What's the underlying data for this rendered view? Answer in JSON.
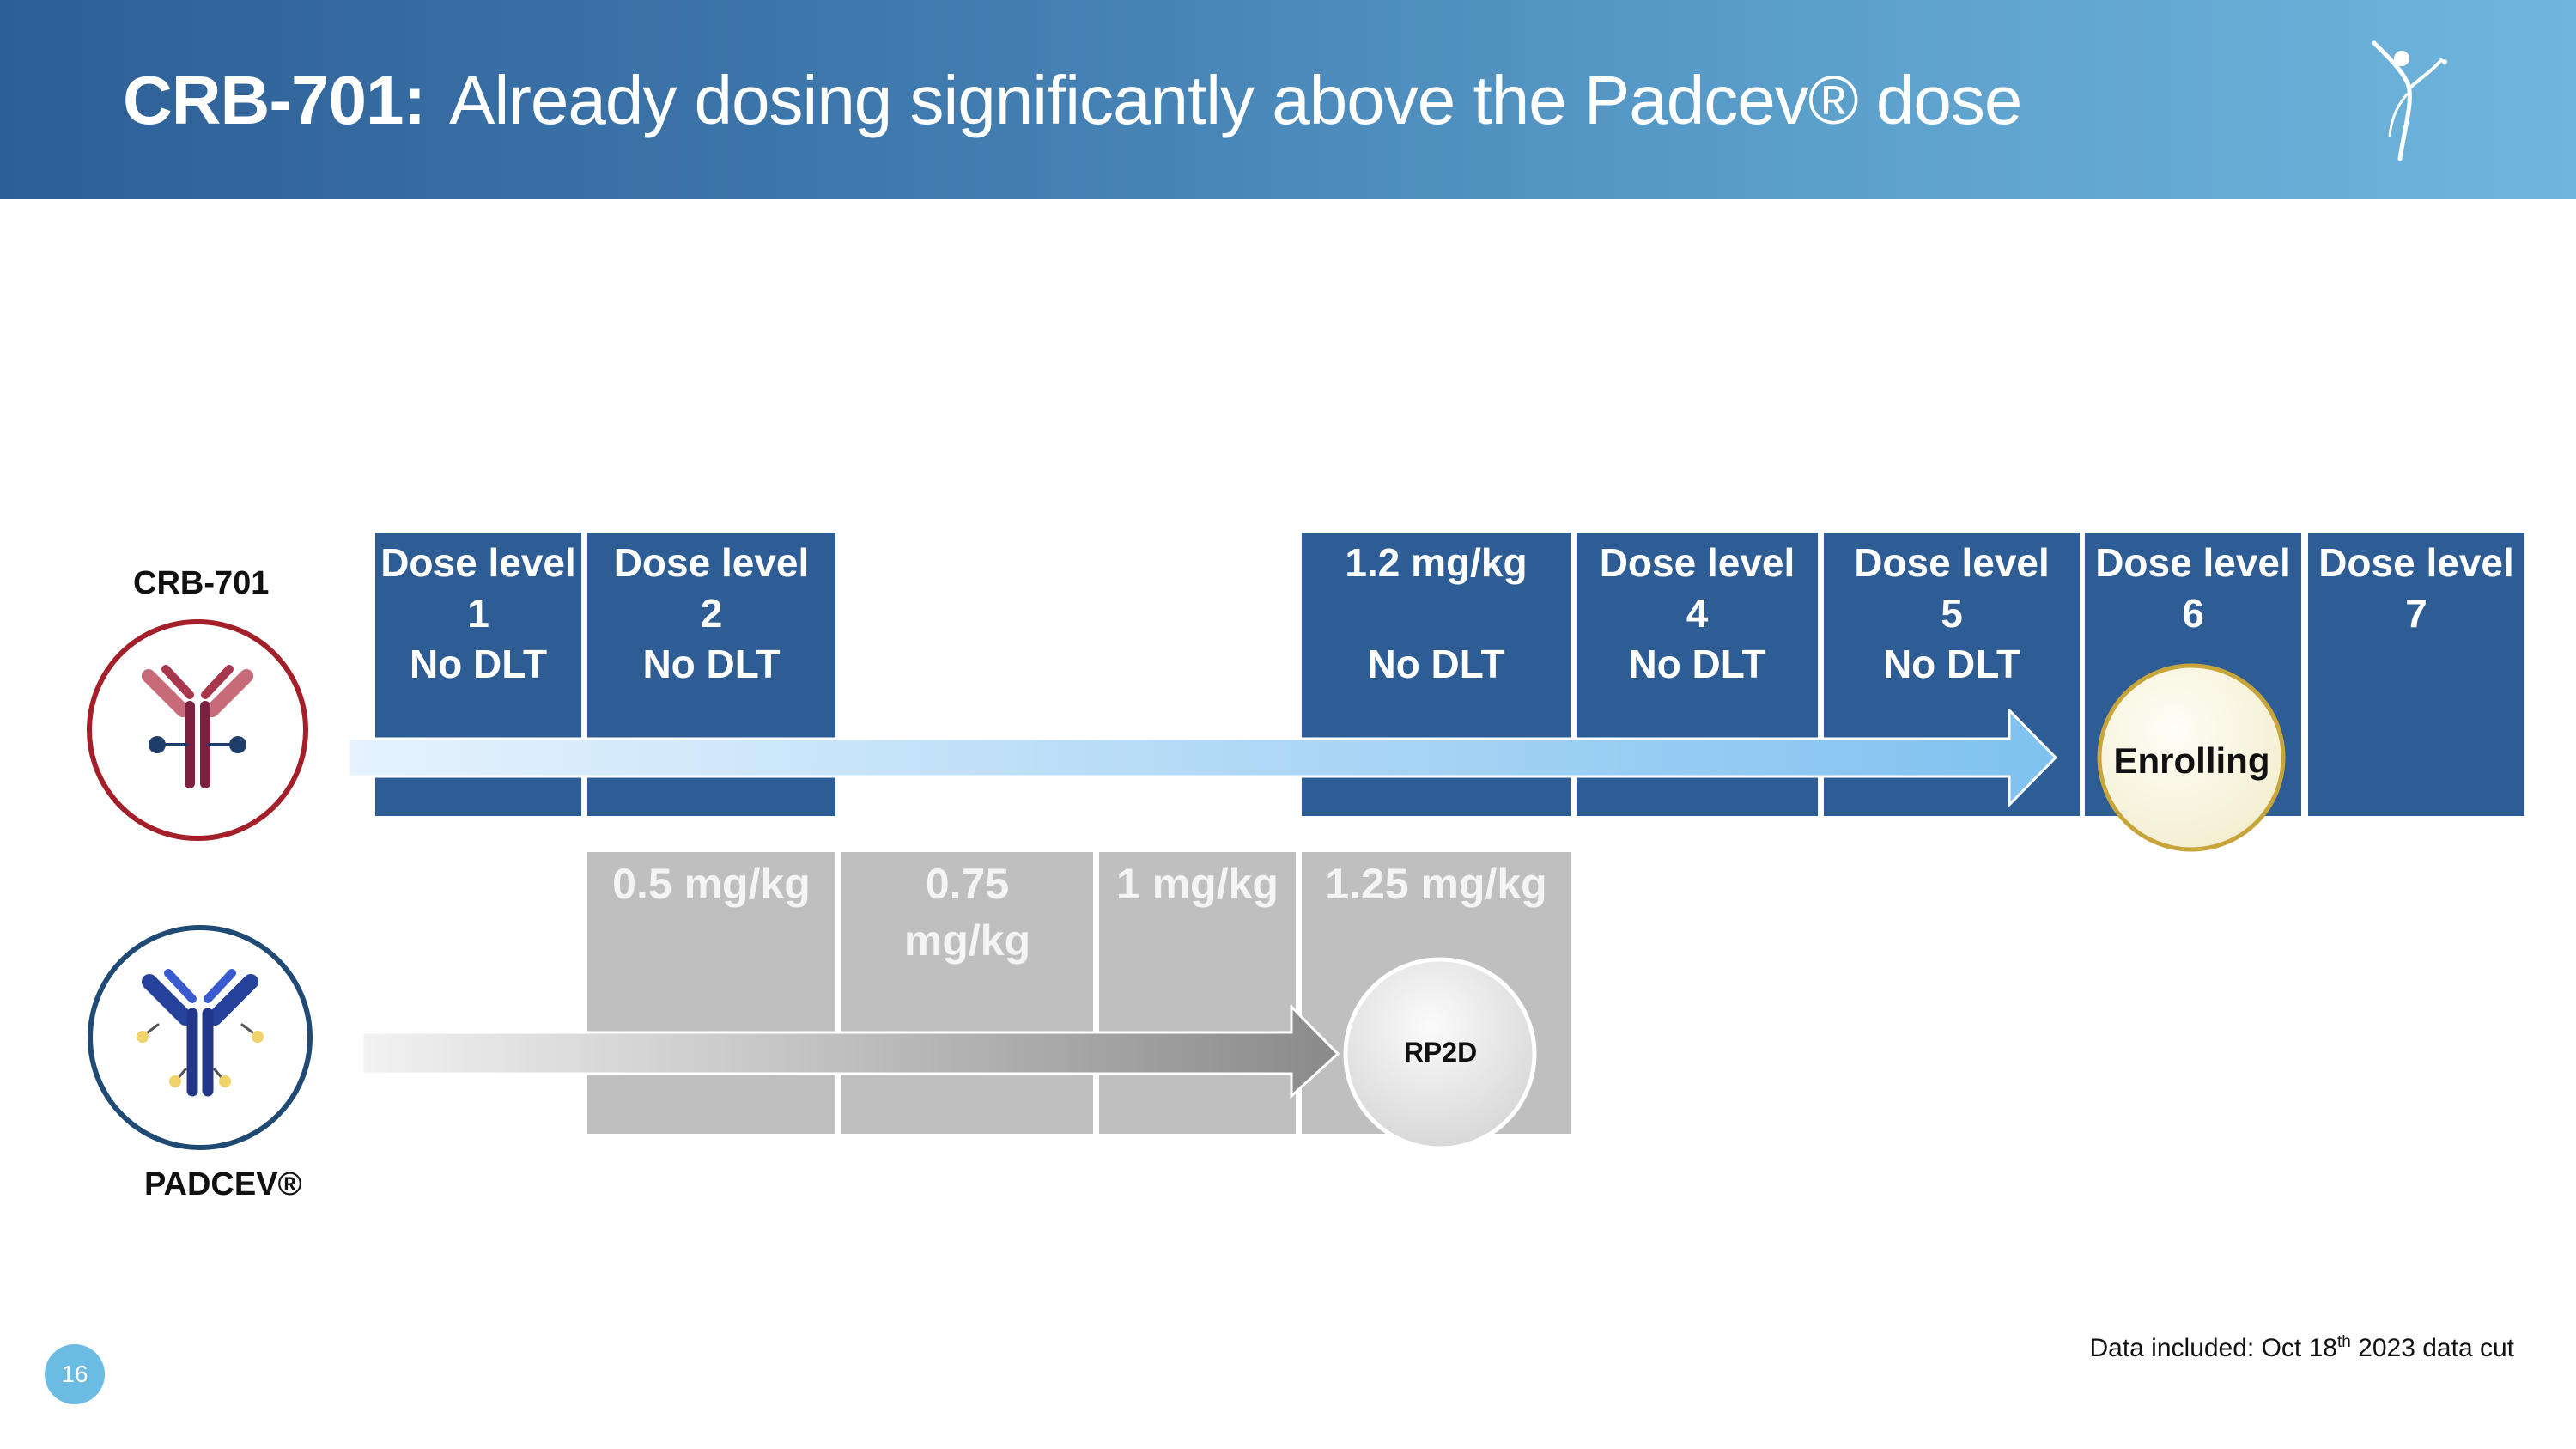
{
  "slide": {
    "title_bold": "CRB-701:",
    "title_rest": "Already dosing significantly above the Padcev® dose",
    "page_number": "16",
    "footnote_pre": "Data included: Oct 18",
    "footnote_sup": "th",
    "footnote_post": " 2023 data cut"
  },
  "crb701": {
    "label": "CRB-701",
    "boxes": [
      {
        "lines": [
          "Dose level",
          "1",
          "No DLT"
        ]
      },
      {
        "lines": [
          "Dose level",
          "2",
          "No DLT"
        ]
      },
      {
        "lines": [
          "1.2 mg/kg",
          "",
          "No DLT"
        ]
      },
      {
        "lines": [
          "Dose level",
          "4",
          "No DLT"
        ]
      },
      {
        "lines": [
          "Dose level",
          "5",
          "No DLT"
        ]
      },
      {
        "lines": [
          "Dose level",
          "6",
          ""
        ]
      },
      {
        "lines": [
          "Dose level",
          "7",
          ""
        ]
      }
    ],
    "status_badge": "Enrolling"
  },
  "padcev": {
    "label": "PADCEV®",
    "boxes": [
      {
        "lines": [
          "0.5 mg/kg"
        ]
      },
      {
        "lines": [
          "0.75",
          "mg/kg"
        ]
      },
      {
        "lines": [
          "1 mg/kg"
        ]
      },
      {
        "lines": [
          "1.25 mg/kg"
        ]
      }
    ],
    "rp2d_badge": "RP2D"
  },
  "colors": {
    "crb_box": "#2e5c94",
    "padcev_box": "#bfbfbf",
    "crb_ring": "#a3202a",
    "padcev_ring": "#1f4a73",
    "arrow_blue": "#7fc1f0",
    "page_badge": "#6cbbe2"
  }
}
